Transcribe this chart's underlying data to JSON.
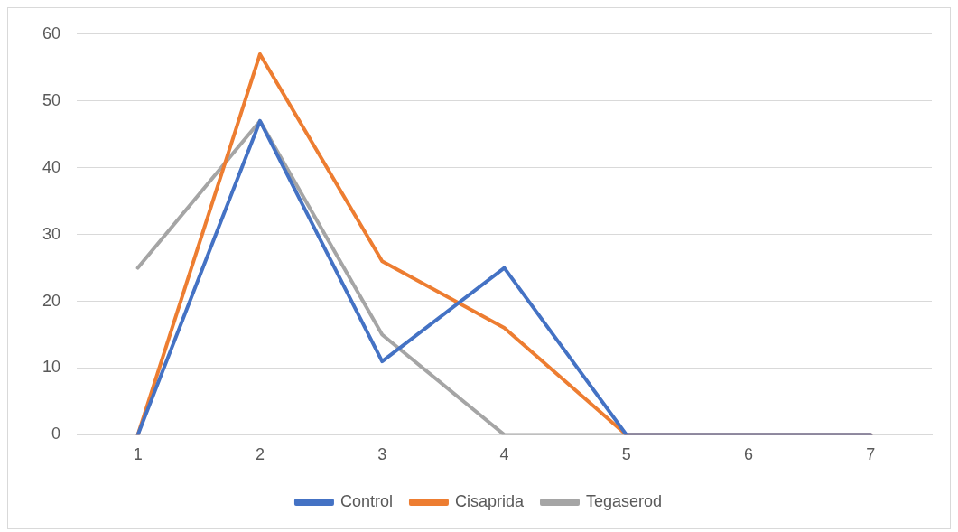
{
  "chart_data": {
    "type": "line",
    "categories": [
      "1",
      "2",
      "3",
      "4",
      "5",
      "6",
      "7"
    ],
    "series": [
      {
        "name": "Control",
        "color": "#4472c4",
        "values": [
          0,
          47,
          11,
          25,
          0,
          0,
          0
        ]
      },
      {
        "name": "Cisaprida",
        "color": "#ed7d31",
        "values": [
          0,
          57,
          26,
          16,
          0,
          0,
          0
        ]
      },
      {
        "name": "Tegaserod",
        "color": "#a5a5a5",
        "values": [
          25,
          47,
          15,
          0,
          0,
          0,
          0
        ]
      }
    ],
    "ylim": [
      0,
      60
    ],
    "yticks": [
      0,
      10,
      20,
      30,
      40,
      50,
      60
    ],
    "grid": "y",
    "legend": "bottom",
    "marker": "none",
    "line_style": "solid"
  }
}
